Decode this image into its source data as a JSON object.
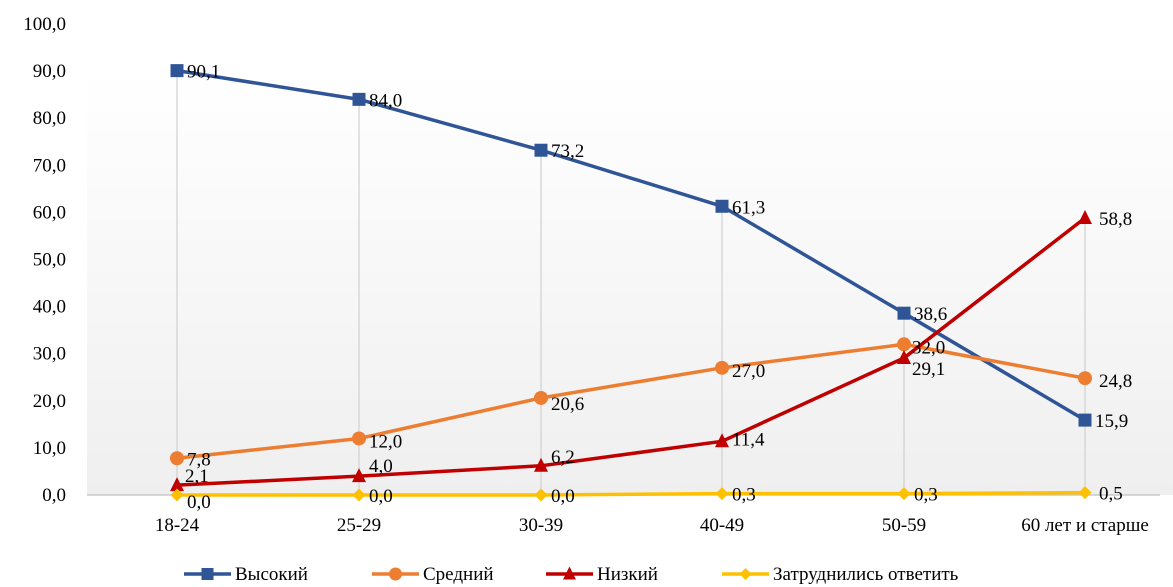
{
  "chart_data": {
    "type": "line",
    "title": "",
    "xlabel": "",
    "ylabel": "",
    "categories": [
      "18-24",
      "25-29",
      "30-39",
      "40-49",
      "50-59",
      "60 лет и старше"
    ],
    "ylim": [
      0,
      100
    ],
    "y_ticks": [
      "0,0",
      "10,0",
      "20,0",
      "30,0",
      "40,0",
      "50,0",
      "60,0",
      "70,0",
      "80,0",
      "90,0",
      "100,0"
    ],
    "grid": "vertical drop lines",
    "legend_position": "bottom",
    "series": [
      {
        "name": "Высокий",
        "color": "#2f5597",
        "marker": "square",
        "values": [
          90.1,
          84.0,
          73.2,
          61.3,
          38.6,
          15.9
        ],
        "labels": [
          "90,1",
          "84,0",
          "73,2",
          "61,3",
          "38,6",
          "15,9"
        ]
      },
      {
        "name": "Средний",
        "color": "#ed7d31",
        "marker": "circle",
        "values": [
          7.8,
          12.0,
          20.6,
          27.0,
          32.0,
          24.8
        ],
        "labels": [
          "7,8",
          "12,0",
          "20,6",
          "27,0",
          "32,0",
          "24,8"
        ]
      },
      {
        "name": "Низкий",
        "color": "#c00000",
        "marker": "triangle",
        "values": [
          2.1,
          4.0,
          6.2,
          11.4,
          29.1,
          58.8
        ],
        "labels": [
          "2,1",
          "4,0",
          "6,2",
          "11,4",
          "29,1",
          "58,8"
        ]
      },
      {
        "name": "Затруднились ответить",
        "color": "#ffc000",
        "marker": "diamond",
        "values": [
          0.0,
          0.0,
          0.0,
          0.3,
          0.3,
          0.5
        ],
        "labels": [
          "0,0",
          "0,0",
          "0,0",
          "0,3",
          "0,3",
          "0,5"
        ]
      }
    ]
  }
}
